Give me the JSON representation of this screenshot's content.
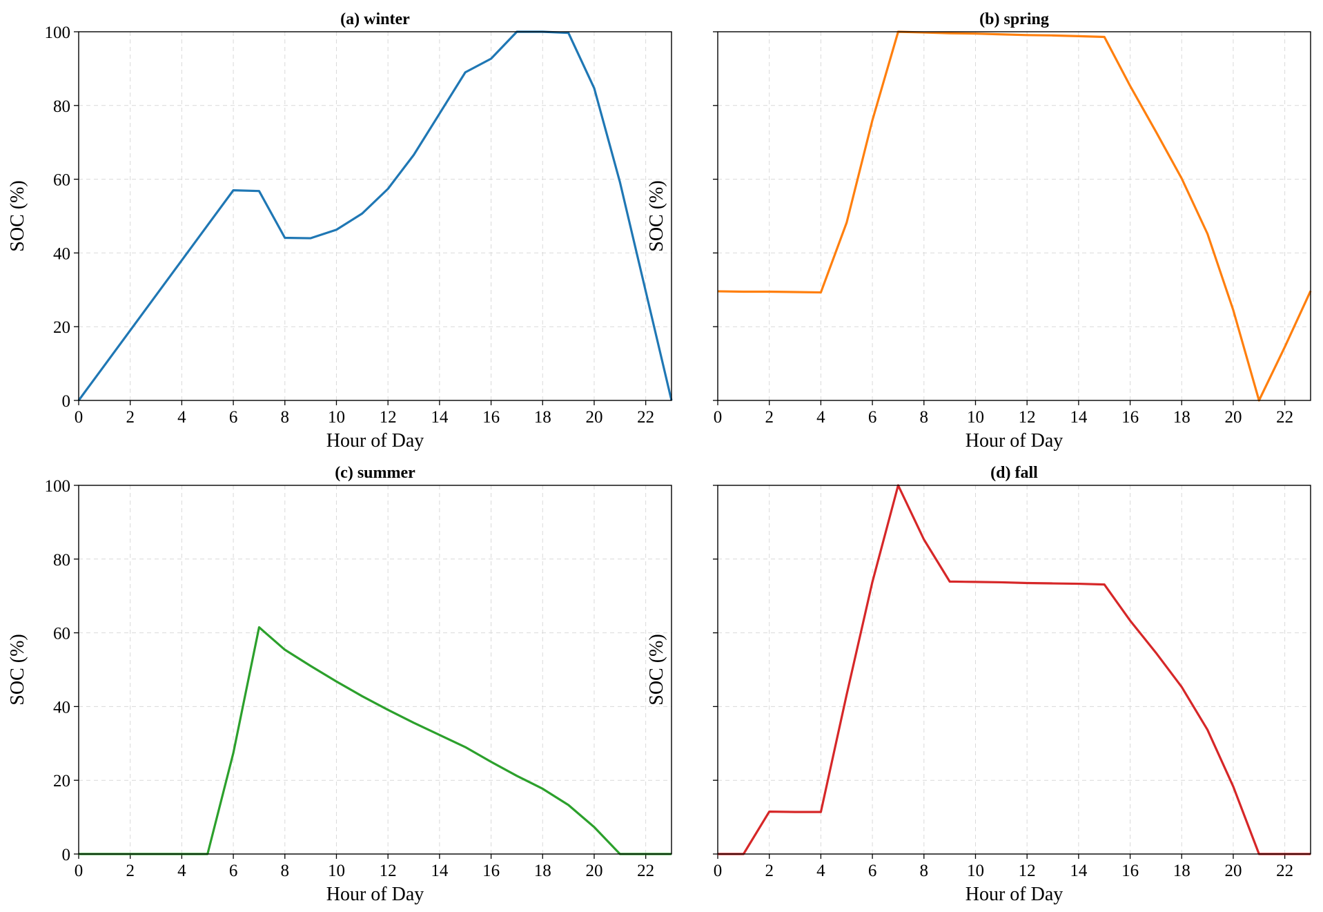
{
  "chart_data": [
    {
      "type": "line",
      "title": "(a) winter",
      "xlabel": "Hour of Day",
      "ylabel": "SOC (%)",
      "xlim": [
        0,
        23
      ],
      "ylim": [
        0,
        100
      ],
      "xticks": [
        0,
        2,
        4,
        6,
        8,
        10,
        12,
        14,
        16,
        18,
        20,
        22
      ],
      "yticks": [
        0,
        20,
        40,
        60,
        80,
        100
      ],
      "show_ytick_labels": true,
      "grid": true,
      "x": [
        0,
        1,
        2,
        3,
        4,
        5,
        6,
        7,
        8,
        9,
        10,
        11,
        12,
        13,
        14,
        15,
        16,
        17,
        18,
        19,
        20,
        21,
        22,
        23
      ],
      "series": [
        {
          "color": "#1f77b4",
          "values": [
            0,
            9.5,
            19,
            28.5,
            38,
            47.5,
            57,
            56.8,
            44.1,
            44,
            46.3,
            50.7,
            57.4,
            66.6,
            77.8,
            89,
            92.7,
            100,
            100,
            99.7,
            84.7,
            59.2,
            29.6,
            0
          ]
        }
      ]
    },
    {
      "type": "line",
      "title": "(b) spring",
      "xlabel": "Hour of Day",
      "ylabel": "SOC (%)",
      "xlim": [
        0,
        23
      ],
      "ylim": [
        0,
        100
      ],
      "xticks": [
        0,
        2,
        4,
        6,
        8,
        10,
        12,
        14,
        16,
        18,
        20,
        22
      ],
      "yticks": [
        0,
        20,
        40,
        60,
        80,
        100
      ],
      "show_ytick_labels": false,
      "grid": true,
      "x": [
        0,
        1,
        2,
        3,
        4,
        5,
        6,
        7,
        8,
        9,
        10,
        11,
        12,
        13,
        14,
        15,
        16,
        17,
        18,
        19,
        20,
        21,
        22,
        23
      ],
      "series": [
        {
          "color": "#ff7f0e",
          "values": [
            29.6,
            29.5,
            29.5,
            29.4,
            29.3,
            48.2,
            76,
            100,
            99.8,
            99.6,
            99.5,
            99.3,
            99.1,
            99,
            98.8,
            98.6,
            85.3,
            72.9,
            60.2,
            45.2,
            24.5,
            0,
            14.5,
            29.7
          ]
        }
      ]
    },
    {
      "type": "line",
      "title": "(c) summer",
      "xlabel": "Hour of Day",
      "ylabel": "SOC (%)",
      "xlim": [
        0,
        23
      ],
      "ylim": [
        0,
        100
      ],
      "xticks": [
        0,
        2,
        4,
        6,
        8,
        10,
        12,
        14,
        16,
        18,
        20,
        22
      ],
      "yticks": [
        0,
        20,
        40,
        60,
        80,
        100
      ],
      "show_ytick_labels": true,
      "grid": true,
      "x": [
        0,
        1,
        2,
        3,
        4,
        5,
        6,
        7,
        8,
        9,
        10,
        11,
        12,
        13,
        14,
        15,
        16,
        17,
        18,
        19,
        20,
        21,
        22,
        23
      ],
      "series": [
        {
          "color": "#2ca02c",
          "values": [
            0,
            0,
            0,
            0,
            0,
            0,
            27.4,
            61.5,
            55.4,
            51,
            46.8,
            42.8,
            39.1,
            35.6,
            32.3,
            29,
            25,
            21.2,
            17.7,
            13.3,
            7.3,
            0,
            0,
            0
          ]
        }
      ]
    },
    {
      "type": "line",
      "title": "(d) fall",
      "xlabel": "Hour of Day",
      "ylabel": "SOC (%)",
      "xlim": [
        0,
        23
      ],
      "ylim": [
        0,
        100
      ],
      "xticks": [
        0,
        2,
        4,
        6,
        8,
        10,
        12,
        14,
        16,
        18,
        20,
        22
      ],
      "yticks": [
        0,
        20,
        40,
        60,
        80,
        100
      ],
      "show_ytick_labels": false,
      "grid": true,
      "x": [
        0,
        1,
        2,
        3,
        4,
        5,
        6,
        7,
        8,
        9,
        10,
        11,
        12,
        13,
        14,
        15,
        16,
        17,
        18,
        19,
        20,
        21,
        22,
        23
      ],
      "series": [
        {
          "color": "#d62728",
          "values": [
            0,
            0,
            11.5,
            11.4,
            11.4,
            43.2,
            73.8,
            100,
            85.3,
            73.9,
            73.8,
            73.7,
            73.5,
            73.4,
            73.3,
            73.1,
            63.3,
            54.6,
            45.3,
            33.7,
            18.3,
            0,
            0,
            0
          ]
        }
      ]
    }
  ]
}
